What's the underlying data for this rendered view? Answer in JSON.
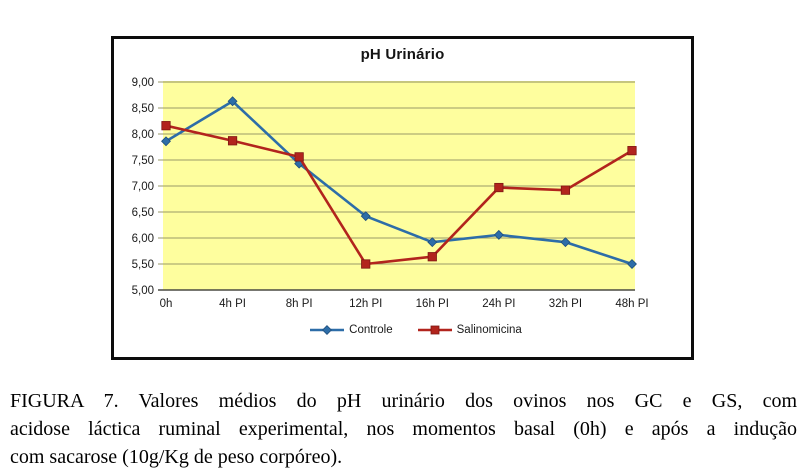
{
  "figure": {
    "caption_lines": [
      "FIGURA 7. Valores médios do pH urinário dos ovinos nos GC e GS, com",
      "acidose láctica ruminal experimental, nos momentos basal (0h) e após a indução",
      "com sacarose (10g/Kg de peso corpóreo)."
    ]
  },
  "chart_data": {
    "type": "line",
    "title": "pH Urinário",
    "categories": [
      "0h",
      "4h PI",
      "8h PI",
      "12h PI",
      "16h PI",
      "24h PI",
      "32h PI",
      "48h PI"
    ],
    "series": [
      {
        "name": "Controle",
        "values": [
          7.86,
          8.63,
          7.43,
          6.42,
          5.92,
          6.06,
          5.92,
          5.5
        ],
        "color": "#2D6DA8",
        "marker": "diamond",
        "marker_edge": "#1E4E7C"
      },
      {
        "name": "Salinomicina",
        "values": [
          8.16,
          7.87,
          7.56,
          5.5,
          5.64,
          6.97,
          6.92,
          7.68
        ],
        "color": "#B2241D",
        "marker": "square",
        "marker_edge": "#7E1712"
      }
    ],
    "ylim": [
      5.0,
      9.0
    ],
    "ytick_step": 0.5,
    "ytick_labels": [
      "9,00",
      "8,50",
      "8,00",
      "7,50",
      "7,00",
      "6,50",
      "6,00",
      "5,50",
      "5,00"
    ],
    "xlabel": "",
    "ylabel": "",
    "grid": true,
    "legend_position": "bottom",
    "plot_bg": "#FEFE9E",
    "gridline_color": "#9A9A68",
    "gridline_top_color": "#C6C67E",
    "axis_line_color": "#4A4A42",
    "text_color": "#1a1a1a"
  }
}
